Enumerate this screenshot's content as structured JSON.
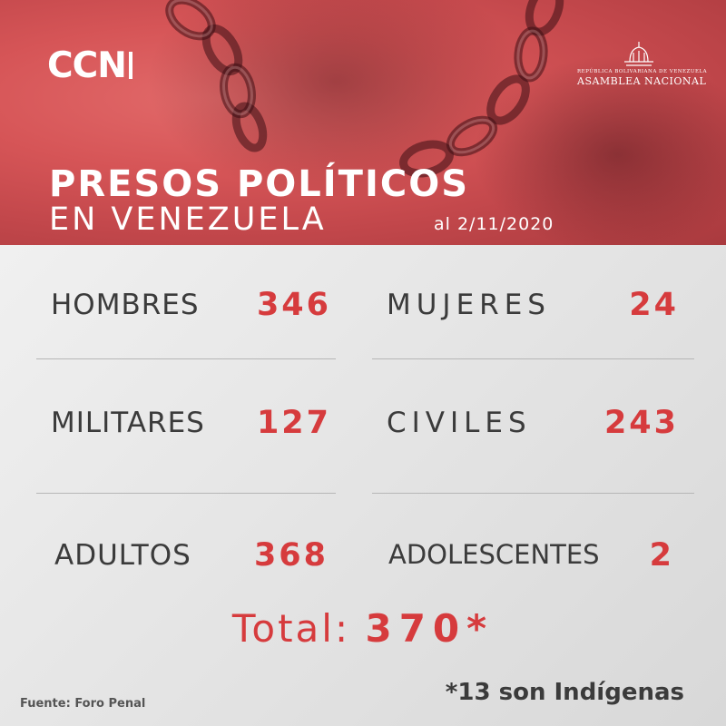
{
  "brand": {
    "logo_text": "CCN"
  },
  "seal": {
    "top_text": "REPÚBLICA BOLIVARIANA DE VENEZUELA",
    "bottom_text": "ASAMBLEA NACIONAL"
  },
  "title": {
    "line1": "PRESOS POLÍTICOS",
    "line2": "EN VENEZUELA",
    "date": "al 2/11/2020"
  },
  "stats": [
    {
      "label": "HOMBRES",
      "value": "346"
    },
    {
      "label": "MUJERES",
      "value": "24"
    },
    {
      "label": "MILITARES",
      "value": "127"
    },
    {
      "label": "CIVILES",
      "value": "243"
    },
    {
      "label": "ADULTOS",
      "value": "368"
    },
    {
      "label": "ADOLESCENTES",
      "value": "2"
    }
  ],
  "total": {
    "label": "Total:",
    "value": "370*"
  },
  "footnote": "*13 son Indígenas",
  "source": "Fuente: Foro Penal",
  "colors": {
    "accent": "#d63b3d",
    "header": "#d65557",
    "text": "#3b3b3b"
  },
  "icons": [
    "capitol-seal-icon",
    "chain-graphic"
  ]
}
